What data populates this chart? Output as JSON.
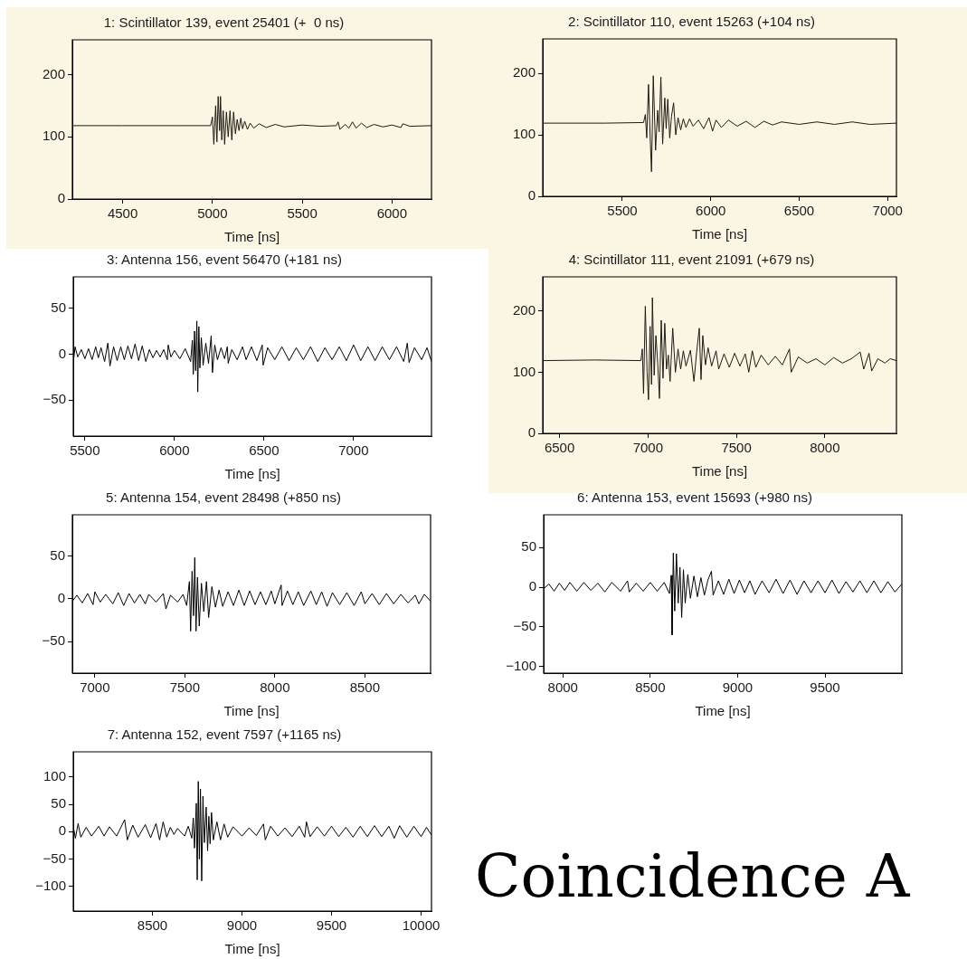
{
  "chart_data": [
    {
      "type": "line",
      "title": "1: Scintillator 139, event 25401 (+  0 ns)",
      "xlabel": "Time [ns]",
      "color": "#1e1a14",
      "xlim": [
        4220,
        6220
      ],
      "xticks": [
        4500,
        5000,
        5500,
        6000
      ],
      "ylim": [
        0,
        256
      ],
      "yticks": [
        0,
        100,
        200
      ],
      "x": [
        4220,
        4500,
        4800,
        4990,
        5000,
        5008,
        5018,
        5025,
        5032,
        5040,
        5045,
        5052,
        5060,
        5068,
        5078,
        5088,
        5098,
        5108,
        5118,
        5128,
        5138,
        5148,
        5158,
        5168,
        5180,
        5195,
        5210,
        5230,
        5260,
        5300,
        5350,
        5400,
        5500,
        5600,
        5690,
        5700,
        5710,
        5740,
        5760,
        5780,
        5800,
        5830,
        5860,
        5900,
        5950,
        6000,
        6050,
        6060,
        6100,
        6220
      ],
      "values": [
        118,
        118,
        118,
        118,
        132,
        88,
        150,
        92,
        165,
        110,
        165,
        95,
        142,
        88,
        140,
        100,
        142,
        95,
        140,
        105,
        128,
        110,
        130,
        113,
        125,
        112,
        122,
        114,
        121,
        115,
        120,
        116,
        119,
        117,
        118,
        124,
        112,
        120,
        114,
        124,
        114,
        122,
        115,
        120,
        116,
        119,
        115,
        121,
        117,
        118
      ]
    },
    {
      "type": "line",
      "title": "2: Scintillator 110, event 15263 (+104 ns)",
      "xlabel": "Time [ns]",
      "color": "#1e1a14",
      "xlim": [
        5050,
        7050
      ],
      "xticks": [
        5500,
        6000,
        6500,
        7000
      ],
      "ylim": [
        0,
        256
      ],
      "yticks": [
        0,
        100,
        200
      ],
      "x": [
        5050,
        5400,
        5620,
        5630,
        5638,
        5648,
        5657,
        5665,
        5675,
        5688,
        5700,
        5708,
        5718,
        5728,
        5740,
        5748,
        5757,
        5768,
        5778,
        5790,
        5802,
        5815,
        5830,
        5845,
        5860,
        5880,
        5900,
        5930,
        5960,
        5990,
        6010,
        6030,
        6060,
        6100,
        6150,
        6200,
        6250,
        6300,
        6350,
        6400,
        6500,
        6600,
        6700,
        6800,
        6900,
        7050
      ],
      "values": [
        119,
        119,
        120,
        133,
        95,
        182,
        100,
        40,
        196,
        75,
        140,
        105,
        194,
        85,
        160,
        110,
        158,
        95,
        130,
        152,
        100,
        128,
        108,
        126,
        112,
        126,
        114,
        124,
        110,
        128,
        106,
        124,
        112,
        124,
        114,
        122,
        112,
        122,
        116,
        121,
        117,
        121,
        117,
        121,
        117,
        119
      ]
    },
    {
      "type": "line",
      "title": "3: Antenna 156, event 56470 (+181 ns)",
      "xlabel": "Time [ns]",
      "color": "#000000",
      "xlim": [
        5435,
        7435
      ],
      "xticks": [
        5500,
        6000,
        6500,
        7000
      ],
      "ylim": [
        -89,
        84
      ],
      "yticks": [
        -50,
        0,
        50
      ],
      "x": [
        5435,
        5445,
        5460,
        5480,
        5500,
        5520,
        5540,
        5560,
        5575,
        5590,
        5610,
        5628,
        5640,
        5660,
        5680,
        5700,
        5720,
        5740,
        5760,
        5780,
        5800,
        5820,
        5840,
        5860,
        5880,
        5900,
        5920,
        5940,
        5960,
        5965,
        5980,
        6000,
        6030,
        6060,
        6090,
        6100,
        6105,
        6112,
        6118,
        6125,
        6130,
        6136,
        6142,
        6150,
        6160,
        6175,
        6190,
        6205,
        6212,
        6225,
        6240,
        6260,
        6280,
        6295,
        6300,
        6320,
        6350,
        6380,
        6400,
        6430,
        6460,
        6490,
        6495,
        6520,
        6560,
        6600,
        6640,
        6680,
        6720,
        6760,
        6800,
        6840,
        6880,
        6920,
        6960,
        7000,
        7040,
        7080,
        7120,
        7160,
        7200,
        7240,
        7280,
        7300,
        7310,
        7340,
        7380,
        7410,
        7435
      ],
      "values": [
        -10,
        8,
        -3,
        5,
        -5,
        6,
        -6,
        8,
        -4,
        7,
        -8,
        12,
        -13,
        8,
        -7,
        8,
        -6,
        9,
        -5,
        11,
        -7,
        9,
        -8,
        5,
        -4,
        4,
        -3,
        5,
        -6,
        10,
        -3,
        4,
        -5,
        6,
        -8,
        15,
        -22,
        25,
        -18,
        36,
        -41,
        30,
        -15,
        18,
        -12,
        12,
        -10,
        20,
        -20,
        10,
        -6,
        7,
        -5,
        8,
        -10,
        5,
        -6,
        8,
        -6,
        8,
        -7,
        10,
        -12,
        7,
        -6,
        8,
        -7,
        7,
        -6,
        8,
        -8,
        7,
        -6,
        8,
        -7,
        10,
        -7,
        8,
        -7,
        8,
        -6,
        8,
        -8,
        12,
        -9,
        7,
        -6,
        7,
        -8
      ]
    },
    {
      "type": "line",
      "title": "4: Scintillator 111, event 21091 (+679 ns)",
      "xlabel": "Time [ns]",
      "color": "#1e1a14",
      "xlim": [
        6405,
        8405
      ],
      "xticks": [
        6500,
        7000,
        7500,
        8000
      ],
      "ylim": [
        0,
        256
      ],
      "yticks": [
        0,
        100,
        200
      ],
      "x": [
        6405,
        6700,
        6960,
        6968,
        6975,
        6985,
        6995,
        7003,
        7012,
        7020,
        7025,
        7035,
        7045,
        7055,
        7065,
        7075,
        7085,
        7095,
        7105,
        7115,
        7125,
        7140,
        7155,
        7170,
        7185,
        7200,
        7215,
        7240,
        7260,
        7275,
        7290,
        7300,
        7310,
        7325,
        7340,
        7360,
        7385,
        7400,
        7430,
        7460,
        7490,
        7520,
        7550,
        7570,
        7590,
        7610,
        7640,
        7680,
        7720,
        7760,
        7800,
        7810,
        7850,
        7900,
        7950,
        8000,
        8050,
        8100,
        8150,
        8200,
        8220,
        8250,
        8265,
        8300,
        8340,
        8370,
        8405
      ],
      "values": [
        119,
        120,
        119,
        138,
        65,
        208,
        100,
        55,
        175,
        80,
        222,
        95,
        160,
        115,
        57,
        185,
        90,
        180,
        105,
        128,
        85,
        172,
        100,
        138,
        105,
        135,
        110,
        136,
        85,
        132,
        172,
        88,
        160,
        112,
        140,
        110,
        135,
        105,
        130,
        108,
        131,
        110,
        130,
        100,
        135,
        108,
        128,
        112,
        126,
        112,
        138,
        100,
        125,
        115,
        122,
        112,
        124,
        115,
        122,
        133,
        105,
        131,
        102,
        122,
        115,
        122,
        119
      ]
    },
    {
      "type": "line",
      "title": "5: Antenna 154, event 28498 (+850 ns)",
      "xlabel": "Time [ns]",
      "color": "#000000",
      "xlim": [
        6875,
        8865
      ],
      "xticks": [
        7000,
        7500,
        8000,
        8500
      ],
      "ylim": [
        -87,
        98
      ],
      "yticks": [
        -50,
        0,
        50
      ],
      "x": [
        6875,
        6900,
        6930,
        6960,
        6990,
        7000,
        7030,
        7060,
        7100,
        7130,
        7160,
        7190,
        7220,
        7250,
        7280,
        7300,
        7340,
        7380,
        7395,
        7420,
        7460,
        7490,
        7510,
        7525,
        7532,
        7540,
        7548,
        7555,
        7562,
        7570,
        7580,
        7592,
        7605,
        7620,
        7632,
        7650,
        7670,
        7690,
        7710,
        7740,
        7770,
        7800,
        7830,
        7860,
        7890,
        7920,
        7950,
        7980,
        8000,
        8035,
        8040,
        8070,
        8100,
        8130,
        8160,
        8200,
        8230,
        8260,
        8290,
        8320,
        8360,
        8400,
        8440,
        8480,
        8500,
        8540,
        8580,
        8620,
        8660,
        8700,
        8740,
        8780,
        8800,
        8830,
        8865
      ],
      "values": [
        -3,
        4,
        -5,
        6,
        -7,
        8,
        -4,
        5,
        -6,
        7,
        -8,
        6,
        -5,
        5,
        -6,
        5,
        -4,
        6,
        -12,
        4,
        -4,
        5,
        -8,
        20,
        -38,
        32,
        -20,
        48,
        -38,
        25,
        -32,
        18,
        -15,
        20,
        -22,
        14,
        -10,
        10,
        -9,
        8,
        -8,
        10,
        -8,
        9,
        -7,
        8,
        -7,
        9,
        -6,
        16,
        -8,
        9,
        -7,
        8,
        -8,
        9,
        -7,
        8,
        -9,
        7,
        -7,
        7,
        -8,
        8,
        -6,
        6,
        -7,
        6,
        -6,
        5,
        -5,
        4,
        -6,
        5,
        -3
      ]
    },
    {
      "type": "line",
      "title": "6: Antenna 153, event 15693 (+980 ns)",
      "xlabel": "Time [ns]",
      "color": "#000000",
      "xlim": [
        7890,
        9940
      ],
      "xticks": [
        8000,
        8500,
        9000,
        9500
      ],
      "ylim": [
        -108,
        91
      ],
      "yticks": [
        -100,
        -50,
        0,
        50
      ],
      "x": [
        7890,
        7920,
        7950,
        7980,
        8010,
        8040,
        8080,
        8120,
        8160,
        8200,
        8240,
        8280,
        8330,
        8370,
        8380,
        8420,
        8460,
        8500,
        8540,
        8580,
        8610,
        8620,
        8625,
        8632,
        8640,
        8650,
        8660,
        8670,
        8680,
        8690,
        8700,
        8715,
        8730,
        8750,
        8770,
        8790,
        8810,
        8830,
        8850,
        8860,
        8890,
        8920,
        8950,
        8980,
        9010,
        9040,
        9070,
        9100,
        9140,
        9180,
        9220,
        9260,
        9300,
        9340,
        9380,
        9420,
        9460,
        9500,
        9540,
        9580,
        9620,
        9660,
        9700,
        9740,
        9780,
        9820,
        9860,
        9900,
        9940
      ],
      "values": [
        -2,
        4,
        -5,
        5,
        -4,
        6,
        -5,
        6,
        -4,
        5,
        -6,
        6,
        -5,
        8,
        -6,
        5,
        -5,
        6,
        -5,
        6,
        -8,
        15,
        -60,
        43,
        -30,
        42,
        -20,
        25,
        -38,
        22,
        -20,
        16,
        -14,
        14,
        -12,
        12,
        -10,
        9,
        20,
        -10,
        8,
        -9,
        10,
        -8,
        9,
        -7,
        8,
        -9,
        8,
        -7,
        10,
        -8,
        9,
        -9,
        8,
        -7,
        8,
        -7,
        9,
        -8,
        7,
        -6,
        8,
        -7,
        8,
        -7,
        7,
        -6,
        4
      ]
    },
    {
      "type": "line",
      "title": "7: Antenna 152, event 7597 (+1165 ns)",
      "xlabel": "Time [ns]",
      "color": "#000000",
      "xlim": [
        8058,
        10058
      ],
      "xticks": [
        8500,
        9000,
        9500,
        10000
      ],
      "ylim": [
        -145,
        146
      ],
      "yticks": [
        -100,
        -50,
        0,
        50,
        100
      ],
      "x": [
        8058,
        8070,
        8085,
        8100,
        8130,
        8160,
        8200,
        8230,
        8260,
        8300,
        8330,
        8345,
        8360,
        8390,
        8420,
        8460,
        8490,
        8520,
        8540,
        8560,
        8580,
        8600,
        8620,
        8640,
        8680,
        8700,
        8720,
        8728,
        8735,
        8745,
        8750,
        8756,
        8762,
        8768,
        8775,
        8782,
        8790,
        8800,
        8808,
        8815,
        8822,
        8830,
        8840,
        8860,
        8880,
        8900,
        8920,
        8950,
        9000,
        9040,
        9080,
        9120,
        9130,
        9160,
        9200,
        9240,
        9280,
        9320,
        9350,
        9360,
        9380,
        9420,
        9460,
        9500,
        9540,
        9580,
        9620,
        9660,
        9700,
        9740,
        9780,
        9820,
        9850,
        9880,
        9920,
        9960,
        10000,
        10030,
        10058
      ],
      "values": [
        10,
        -12,
        15,
        -10,
        8,
        -8,
        10,
        -8,
        9,
        -8,
        12,
        22,
        -15,
        12,
        -10,
        13,
        -11,
        15,
        -15,
        18,
        -10,
        8,
        -5,
        6,
        -8,
        10,
        -12,
        25,
        -30,
        52,
        -88,
        92,
        -50,
        78,
        -90,
        65,
        -20,
        45,
        -35,
        28,
        -22,
        35,
        -15,
        18,
        -15,
        14,
        -10,
        9,
        -8,
        7,
        -7,
        14,
        -15,
        10,
        -8,
        7,
        -9,
        10,
        -10,
        18,
        -9,
        9,
        -8,
        10,
        -9,
        8,
        -10,
        10,
        -9,
        11,
        -9,
        10,
        -12,
        11,
        -10,
        10,
        -9,
        8,
        -6
      ]
    },
    {
      "type": "other",
      "title": "Coincidence A"
    }
  ]
}
